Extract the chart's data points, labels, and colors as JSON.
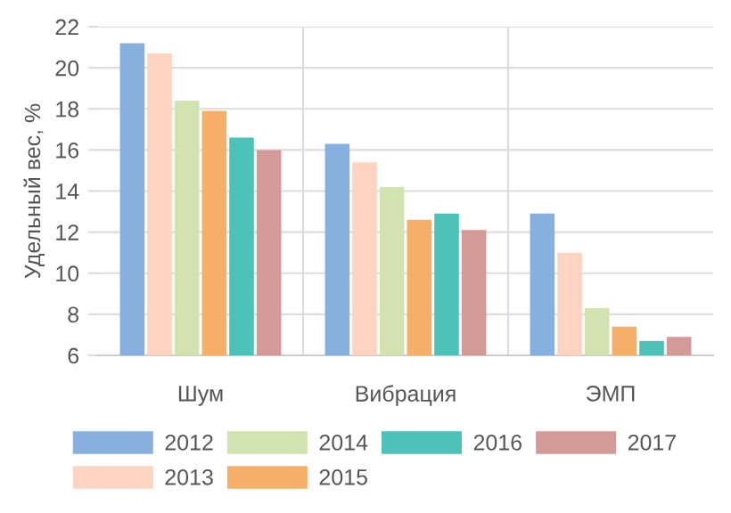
{
  "chart_data": {
    "type": "bar",
    "ylabel": "Удельный вес, %",
    "categories": [
      "Шум",
      "Вибрация",
      "ЭМП"
    ],
    "series": [
      {
        "name": "2012",
        "color": "#87b0de",
        "values": [
          21.2,
          16.3,
          12.9
        ]
      },
      {
        "name": "2013",
        "color": "#fdd3c1",
        "values": [
          20.7,
          15.4,
          11.0
        ]
      },
      {
        "name": "2014",
        "color": "#d2e3b1",
        "values": [
          18.4,
          14.2,
          8.3
        ]
      },
      {
        "name": "2015",
        "color": "#f6af68",
        "values": [
          17.9,
          12.6,
          7.4
        ]
      },
      {
        "name": "2016",
        "color": "#4ec1b9",
        "values": [
          16.6,
          12.9,
          6.7
        ]
      },
      {
        "name": "2017",
        "color": "#d49a98",
        "values": [
          16.0,
          12.1,
          6.9
        ]
      }
    ],
    "ylim": [
      6,
      22
    ],
    "yticks": [
      6,
      8,
      10,
      12,
      14,
      16,
      18,
      20,
      22
    ],
    "grid": true,
    "legend": "bottom"
  }
}
